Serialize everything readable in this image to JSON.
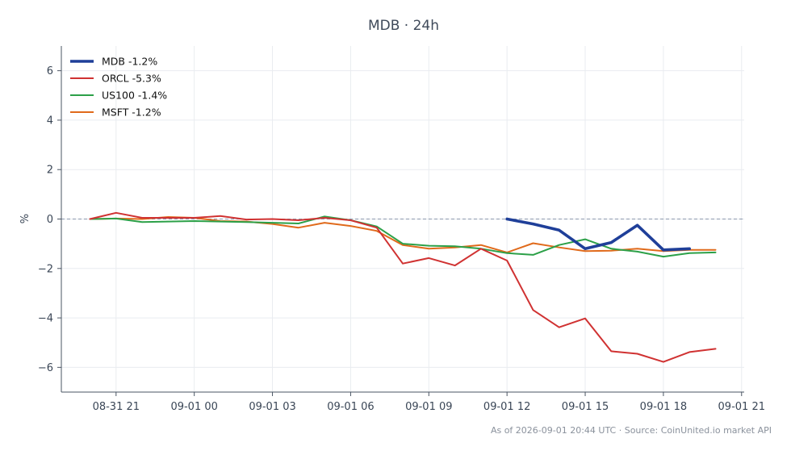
{
  "chart_data": {
    "type": "line",
    "title": "MDB · 24h",
    "ylabel": "%",
    "xlabel": "",
    "ylim": [
      -7,
      7
    ],
    "yticks": [
      6,
      4,
      2,
      0,
      -2,
      -4,
      -6
    ],
    "ytick_labels": [
      "6",
      "4",
      "2",
      "0",
      "−2",
      "−4",
      "−6"
    ],
    "xticks": [
      "08-31 21",
      "09-01 00",
      "09-01 03",
      "09-01 06",
      "09-01 09",
      "09-01 12",
      "09-01 15",
      "09-01 18",
      "09-01 21"
    ],
    "xtick_hours": [
      21,
      24,
      27,
      30,
      33,
      36,
      39,
      42,
      45
    ],
    "x_hours_range": [
      18.9,
      45.1
    ],
    "grid": true,
    "zero_line": true,
    "legend_position": "top-left",
    "series": [
      {
        "name": "MDB -1.2%",
        "color": "#1f3f99",
        "x_hours": [
          36,
          37,
          38,
          39,
          40,
          41,
          42,
          43
        ],
        "values": [
          0.0,
          -0.2,
          -0.45,
          -1.2,
          -0.95,
          -0.25,
          -1.25,
          -1.2
        ]
      },
      {
        "name": "ORCL -5.3%",
        "color": "#d03232",
        "x_hours": [
          20,
          21,
          22,
          23,
          24,
          25,
          26,
          27,
          28,
          29,
          30,
          31,
          32,
          33,
          34,
          35,
          36,
          37,
          38,
          39,
          40,
          41,
          42,
          43,
          44
        ],
        "values": [
          0.0,
          0.25,
          0.05,
          0.05,
          0.05,
          0.12,
          -0.02,
          0.0,
          -0.05,
          0.05,
          -0.05,
          -0.35,
          -1.8,
          -1.58,
          -1.88,
          -1.2,
          -1.68,
          -3.68,
          -4.38,
          -4.02,
          -5.35,
          -5.45,
          -5.78,
          -5.38,
          -5.25
        ]
      },
      {
        "name": "US100 -1.4%",
        "color": "#2ca048",
        "x_hours": [
          20,
          21,
          22,
          23,
          24,
          25,
          26,
          27,
          28,
          29,
          30,
          31,
          32,
          33,
          34,
          35,
          36,
          37,
          38,
          39,
          40,
          41,
          42,
          43,
          44
        ],
        "values": [
          0.0,
          0.02,
          -0.12,
          -0.1,
          -0.08,
          -0.1,
          -0.12,
          -0.15,
          -0.18,
          0.1,
          -0.05,
          -0.3,
          -1.0,
          -1.08,
          -1.1,
          -1.2,
          -1.38,
          -1.45,
          -1.05,
          -0.82,
          -1.2,
          -1.32,
          -1.52,
          -1.38,
          -1.35
        ]
      },
      {
        "name": "MSFT -1.2%",
        "color": "#e06a1b",
        "x_hours": [
          20,
          21,
          22,
          23,
          24,
          25,
          26,
          27,
          28,
          29,
          30,
          31,
          32,
          33,
          34,
          35,
          36,
          37,
          38,
          39,
          40,
          41,
          42,
          43,
          44
        ],
        "values": [
          0.0,
          0.02,
          0.0,
          0.08,
          0.05,
          -0.08,
          -0.1,
          -0.2,
          -0.35,
          -0.15,
          -0.28,
          -0.48,
          -1.05,
          -1.2,
          -1.15,
          -1.05,
          -1.35,
          -0.98,
          -1.15,
          -1.3,
          -1.28,
          -1.2,
          -1.3,
          -1.25,
          -1.25
        ]
      }
    ]
  },
  "footer": "As of 2026-09-01 20:44 UTC · Source: CoinUnited.io market API"
}
